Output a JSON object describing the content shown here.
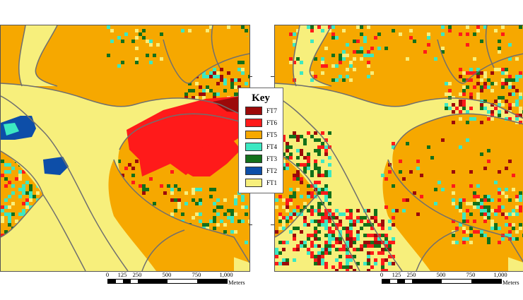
{
  "legend": {
    "title": "Key",
    "items": [
      {
        "label": "FT7",
        "color": "#9c0a0a"
      },
      {
        "label": "FT6",
        "color": "#ff1a1a"
      },
      {
        "label": "FT5",
        "color": "#f6a800"
      },
      {
        "label": "FT4",
        "color": "#3ce8c2"
      },
      {
        "label": "FT3",
        "color": "#13701a"
      },
      {
        "label": "FT2",
        "color": "#0d4ea8"
      },
      {
        "label": "FT1",
        "color": "#f7ef7c"
      }
    ]
  },
  "scalebar": {
    "labels": [
      "0",
      "125",
      "250",
      "500",
      "750",
      "1,000"
    ],
    "unit": "Meters"
  },
  "colors": {
    "boundary": "#6f6f6f",
    "background": "#f6a800",
    "river": "#f7ef7c"
  },
  "panels": [
    {
      "name": "left-map"
    },
    {
      "name": "right-map"
    }
  ]
}
